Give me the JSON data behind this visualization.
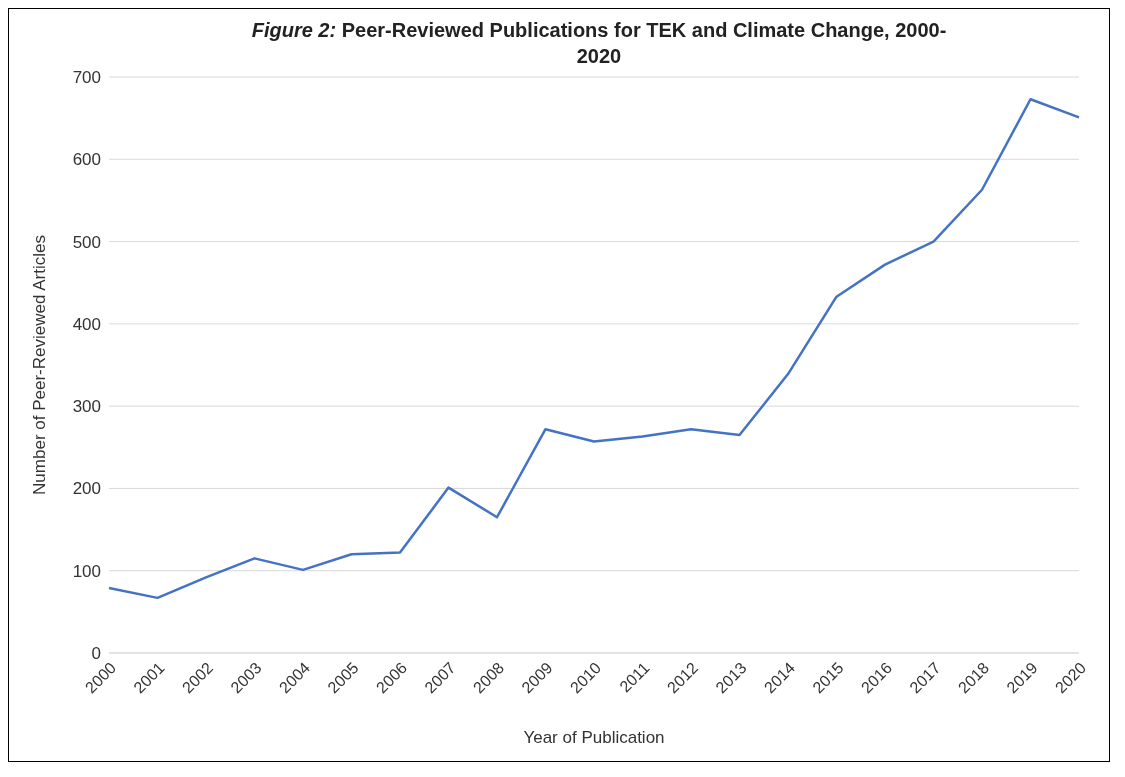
{
  "chart_data": {
    "type": "line",
    "title": "Figure 2: Peer-Reviewed Publications for TEK and Climate Change, 2000-2020",
    "xlabel": "Year of Publication",
    "ylabel": "Number of Peer-Reviewed Articles",
    "categories": [
      "2000",
      "2001",
      "2002",
      "2003",
      "2004",
      "2005",
      "2006",
      "2007",
      "2008",
      "2009",
      "2010",
      "2011",
      "2012",
      "2013",
      "2014",
      "2015",
      "2016",
      "2017",
      "2018",
      "2019",
      "2020"
    ],
    "series": [
      {
        "color": "#4472c4",
        "values": [
          79,
          67,
          92,
          115,
          101,
          120,
          122,
          201,
          165,
          272,
          257,
          263,
          272,
          265,
          339,
          433,
          472,
          500,
          563,
          673,
          651
        ]
      }
    ],
    "ylim": [
      0,
      700
    ],
    "yticks": [
      0,
      100,
      200,
      300,
      400,
      500,
      600,
      700
    ],
    "grid": "y",
    "legend": false,
    "marker": "none",
    "line_style": "solid"
  }
}
